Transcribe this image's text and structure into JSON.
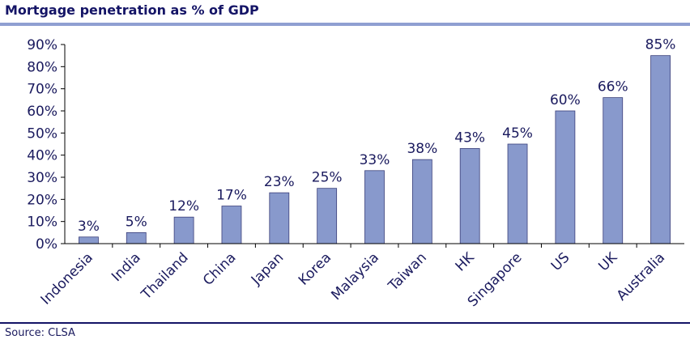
{
  "title": "Mortgage penetration as % of GDP",
  "source": "Source: CLSA",
  "colors": {
    "bar": "#8899cc",
    "bar_stroke": "#3a3f7a",
    "text": "#1a1a5e",
    "title_rule": "#8f9fd2"
  },
  "chart_data": {
    "type": "bar",
    "title": "Mortgage penetration as % of GDP",
    "xlabel": "",
    "ylabel": "",
    "ylim": [
      0,
      90
    ],
    "yticks": [
      "0%",
      "10%",
      "20%",
      "30%",
      "40%",
      "50%",
      "60%",
      "70%",
      "80%",
      "90%"
    ],
    "categories": [
      "Indonesia",
      "India",
      "Thailand",
      "China",
      "Japan",
      "Korea",
      "Malaysia",
      "Taiwan",
      "HK",
      "Singapore",
      "US",
      "UK",
      "Australia"
    ],
    "values": [
      3,
      5,
      12,
      17,
      23,
      25,
      33,
      38,
      43,
      45,
      60,
      66,
      85
    ],
    "data_labels": [
      "3%",
      "5%",
      "12%",
      "17%",
      "23%",
      "25%",
      "33%",
      "38%",
      "43%",
      "45%",
      "60%",
      "66%",
      "85%"
    ],
    "grid": false,
    "legend": "none"
  }
}
